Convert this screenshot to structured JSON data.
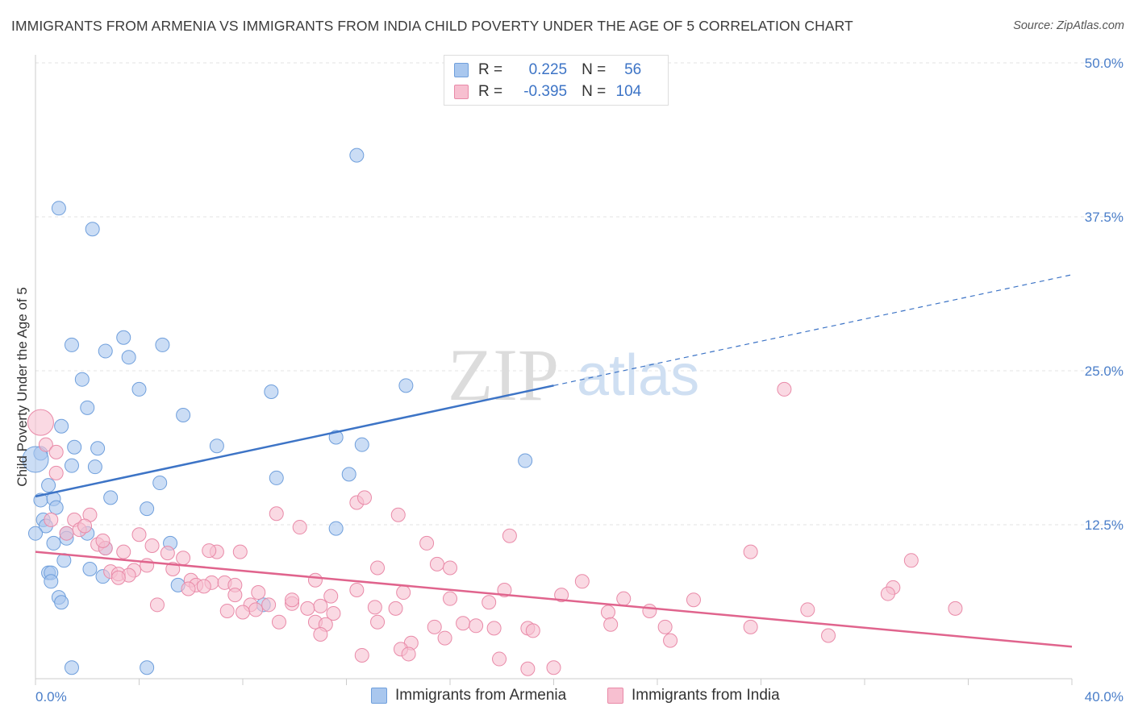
{
  "title": "IMMIGRANTS FROM ARMENIA VS IMMIGRANTS FROM INDIA CHILD POVERTY UNDER THE AGE OF 5 CORRELATION CHART",
  "source": "Source: ZipAtlas.com",
  "watermark": {
    "zip": "ZIP",
    "atlas": "atlas"
  },
  "legend": {
    "rows": [
      {
        "r_label": "R =",
        "r_value": "0.225",
        "n_label": "N =",
        "n_value": "56",
        "color": "#a9c7ee",
        "border": "#6f9fdc"
      },
      {
        "r_label": "R =",
        "r_value": "-0.395",
        "n_label": "N =",
        "n_value": "104",
        "color": "#f7bfd0",
        "border": "#e98aa8"
      }
    ]
  },
  "bottom_legend": {
    "armenia": "Immigrants from Armenia",
    "india": "Immigrants from India"
  },
  "chart_data": {
    "type": "scatter",
    "ylabel": "Child Poverty Under the Age of 5",
    "xlim": [
      0,
      40
    ],
    "ylim": [
      0,
      50
    ],
    "x_tick_labels": [
      "0.0%",
      "40.0%"
    ],
    "y_ticks": [
      12.5,
      25.0,
      37.5,
      50.0
    ],
    "y_tick_labels": [
      "12.5%",
      "25.0%",
      "37.5%",
      "50.0%"
    ],
    "grid": true,
    "legend_position": "top-center",
    "series": [
      {
        "name": "Immigrants from Armenia",
        "color": "#a9c7ee",
        "stroke": "#6f9fdc",
        "trend": {
          "x0": 0,
          "y0": 14.8,
          "x1": 20,
          "y1": 23.8,
          "x_end": 40,
          "y_end": 32.8,
          "line_color": "#3d74c6"
        },
        "points": [
          [
            12.4,
            42.5
          ],
          [
            0.9,
            38.2
          ],
          [
            2.2,
            36.5
          ],
          [
            3.4,
            27.7
          ],
          [
            1.4,
            27.1
          ],
          [
            4.9,
            27.1
          ],
          [
            2.7,
            26.6
          ],
          [
            3.6,
            26.1
          ],
          [
            1.8,
            24.3
          ],
          [
            4.0,
            23.5
          ],
          [
            9.1,
            23.3
          ],
          [
            14.3,
            23.8
          ],
          [
            2.0,
            22.0
          ],
          [
            5.7,
            21.4
          ],
          [
            1.0,
            20.5
          ],
          [
            11.6,
            19.6
          ],
          [
            1.5,
            18.8
          ],
          [
            2.4,
            18.7
          ],
          [
            7.0,
            18.9
          ],
          [
            12.6,
            19.0
          ],
          [
            0.2,
            18.3
          ],
          [
            0.0,
            17.8
          ],
          [
            1.4,
            17.3
          ],
          [
            2.3,
            17.2
          ],
          [
            18.9,
            17.7
          ],
          [
            12.1,
            16.6
          ],
          [
            9.3,
            16.3
          ],
          [
            4.8,
            15.9
          ],
          [
            0.5,
            15.7
          ],
          [
            2.9,
            14.7
          ],
          [
            0.2,
            14.5
          ],
          [
            0.7,
            14.6
          ],
          [
            0.8,
            13.9
          ],
          [
            4.3,
            13.8
          ],
          [
            0.3,
            12.9
          ],
          [
            0.4,
            12.4
          ],
          [
            11.6,
            12.2
          ],
          [
            2.0,
            11.8
          ],
          [
            1.2,
            11.8
          ],
          [
            1.2,
            11.4
          ],
          [
            0.0,
            11.8
          ],
          [
            0.7,
            11.0
          ],
          [
            5.2,
            11.0
          ],
          [
            2.7,
            10.6
          ],
          [
            1.1,
            9.6
          ],
          [
            0.5,
            8.6
          ],
          [
            2.1,
            8.9
          ],
          [
            0.6,
            8.6
          ],
          [
            2.6,
            8.3
          ],
          [
            0.6,
            7.9
          ],
          [
            5.5,
            7.6
          ],
          [
            0.9,
            6.6
          ],
          [
            1.0,
            6.2
          ],
          [
            8.8,
            6.0
          ],
          [
            1.4,
            0.9
          ],
          [
            4.3,
            0.9
          ]
        ]
      },
      {
        "name": "Immigrants from India",
        "color": "#f7bfd0",
        "stroke": "#e98aa8",
        "trend": {
          "x0": 0,
          "y0": 10.3,
          "x1": 40,
          "y1": 2.6,
          "line_color": "#e0648d"
        },
        "points": [
          [
            0.2,
            20.8
          ],
          [
            0.4,
            19.0
          ],
          [
            0.8,
            18.4
          ],
          [
            0.8,
            16.7
          ],
          [
            28.9,
            23.5
          ],
          [
            12.4,
            14.3
          ],
          [
            12.7,
            14.7
          ],
          [
            9.3,
            13.4
          ],
          [
            14.0,
            13.3
          ],
          [
            2.1,
            13.3
          ],
          [
            1.5,
            12.9
          ],
          [
            10.2,
            12.3
          ],
          [
            1.7,
            12.1
          ],
          [
            1.2,
            11.8
          ],
          [
            4.0,
            11.7
          ],
          [
            18.3,
            11.6
          ],
          [
            15.1,
            11.0
          ],
          [
            2.4,
            10.9
          ],
          [
            4.5,
            10.8
          ],
          [
            2.7,
            10.6
          ],
          [
            3.4,
            10.3
          ],
          [
            5.1,
            10.2
          ],
          [
            7.0,
            10.3
          ],
          [
            7.9,
            10.3
          ],
          [
            27.6,
            10.3
          ],
          [
            5.7,
            9.8
          ],
          [
            33.8,
            9.6
          ],
          [
            4.3,
            9.2
          ],
          [
            5.3,
            8.9
          ],
          [
            3.8,
            8.8
          ],
          [
            2.9,
            8.7
          ],
          [
            3.2,
            8.5
          ],
          [
            13.2,
            9.0
          ],
          [
            15.5,
            9.3
          ],
          [
            16.0,
            9.0
          ],
          [
            3.6,
            8.4
          ],
          [
            3.2,
            8.2
          ],
          [
            6.0,
            8.0
          ],
          [
            10.8,
            8.0
          ],
          [
            6.8,
            7.8
          ],
          [
            7.3,
            7.8
          ],
          [
            21.1,
            7.9
          ],
          [
            6.2,
            7.6
          ],
          [
            5.9,
            7.3
          ],
          [
            6.5,
            7.5
          ],
          [
            7.7,
            7.6
          ],
          [
            12.4,
            7.2
          ],
          [
            18.1,
            7.2
          ],
          [
            8.6,
            7.0
          ],
          [
            14.2,
            7.0
          ],
          [
            33.1,
            7.4
          ],
          [
            32.9,
            6.9
          ],
          [
            7.7,
            6.8
          ],
          [
            11.4,
            6.7
          ],
          [
            20.3,
            6.8
          ],
          [
            16.0,
            6.5
          ],
          [
            17.5,
            6.2
          ],
          [
            22.7,
            6.5
          ],
          [
            25.4,
            6.4
          ],
          [
            4.7,
            6.0
          ],
          [
            8.3,
            6.0
          ],
          [
            8.5,
            5.6
          ],
          [
            9.0,
            6.0
          ],
          [
            9.9,
            6.1
          ],
          [
            11.0,
            5.9
          ],
          [
            11.5,
            5.3
          ],
          [
            13.1,
            5.8
          ],
          [
            10.5,
            5.7
          ],
          [
            13.9,
            5.7
          ],
          [
            22.1,
            5.4
          ],
          [
            23.7,
            5.5
          ],
          [
            29.8,
            5.6
          ],
          [
            35.5,
            5.7
          ],
          [
            7.4,
            5.5
          ],
          [
            8.0,
            5.4
          ],
          [
            9.4,
            4.6
          ],
          [
            13.2,
            4.6
          ],
          [
            10.8,
            4.6
          ],
          [
            11.2,
            4.4
          ],
          [
            15.4,
            4.2
          ],
          [
            16.5,
            4.5
          ],
          [
            17.0,
            4.3
          ],
          [
            17.7,
            4.1
          ],
          [
            19.0,
            4.1
          ],
          [
            19.2,
            3.9
          ],
          [
            22.2,
            4.4
          ],
          [
            24.3,
            4.2
          ],
          [
            27.6,
            4.2
          ],
          [
            11.0,
            3.6
          ],
          [
            15.8,
            3.3
          ],
          [
            24.5,
            3.1
          ],
          [
            30.6,
            3.5
          ],
          [
            14.5,
            2.9
          ],
          [
            14.1,
            2.4
          ],
          [
            14.4,
            2.0
          ],
          [
            12.6,
            1.9
          ],
          [
            17.9,
            1.6
          ],
          [
            20.0,
            0.9
          ],
          [
            19.0,
            0.8
          ],
          [
            0.6,
            12.9
          ],
          [
            1.9,
            12.4
          ],
          [
            2.6,
            11.2
          ],
          [
            6.7,
            10.4
          ],
          [
            9.9,
            6.4
          ]
        ]
      }
    ]
  }
}
